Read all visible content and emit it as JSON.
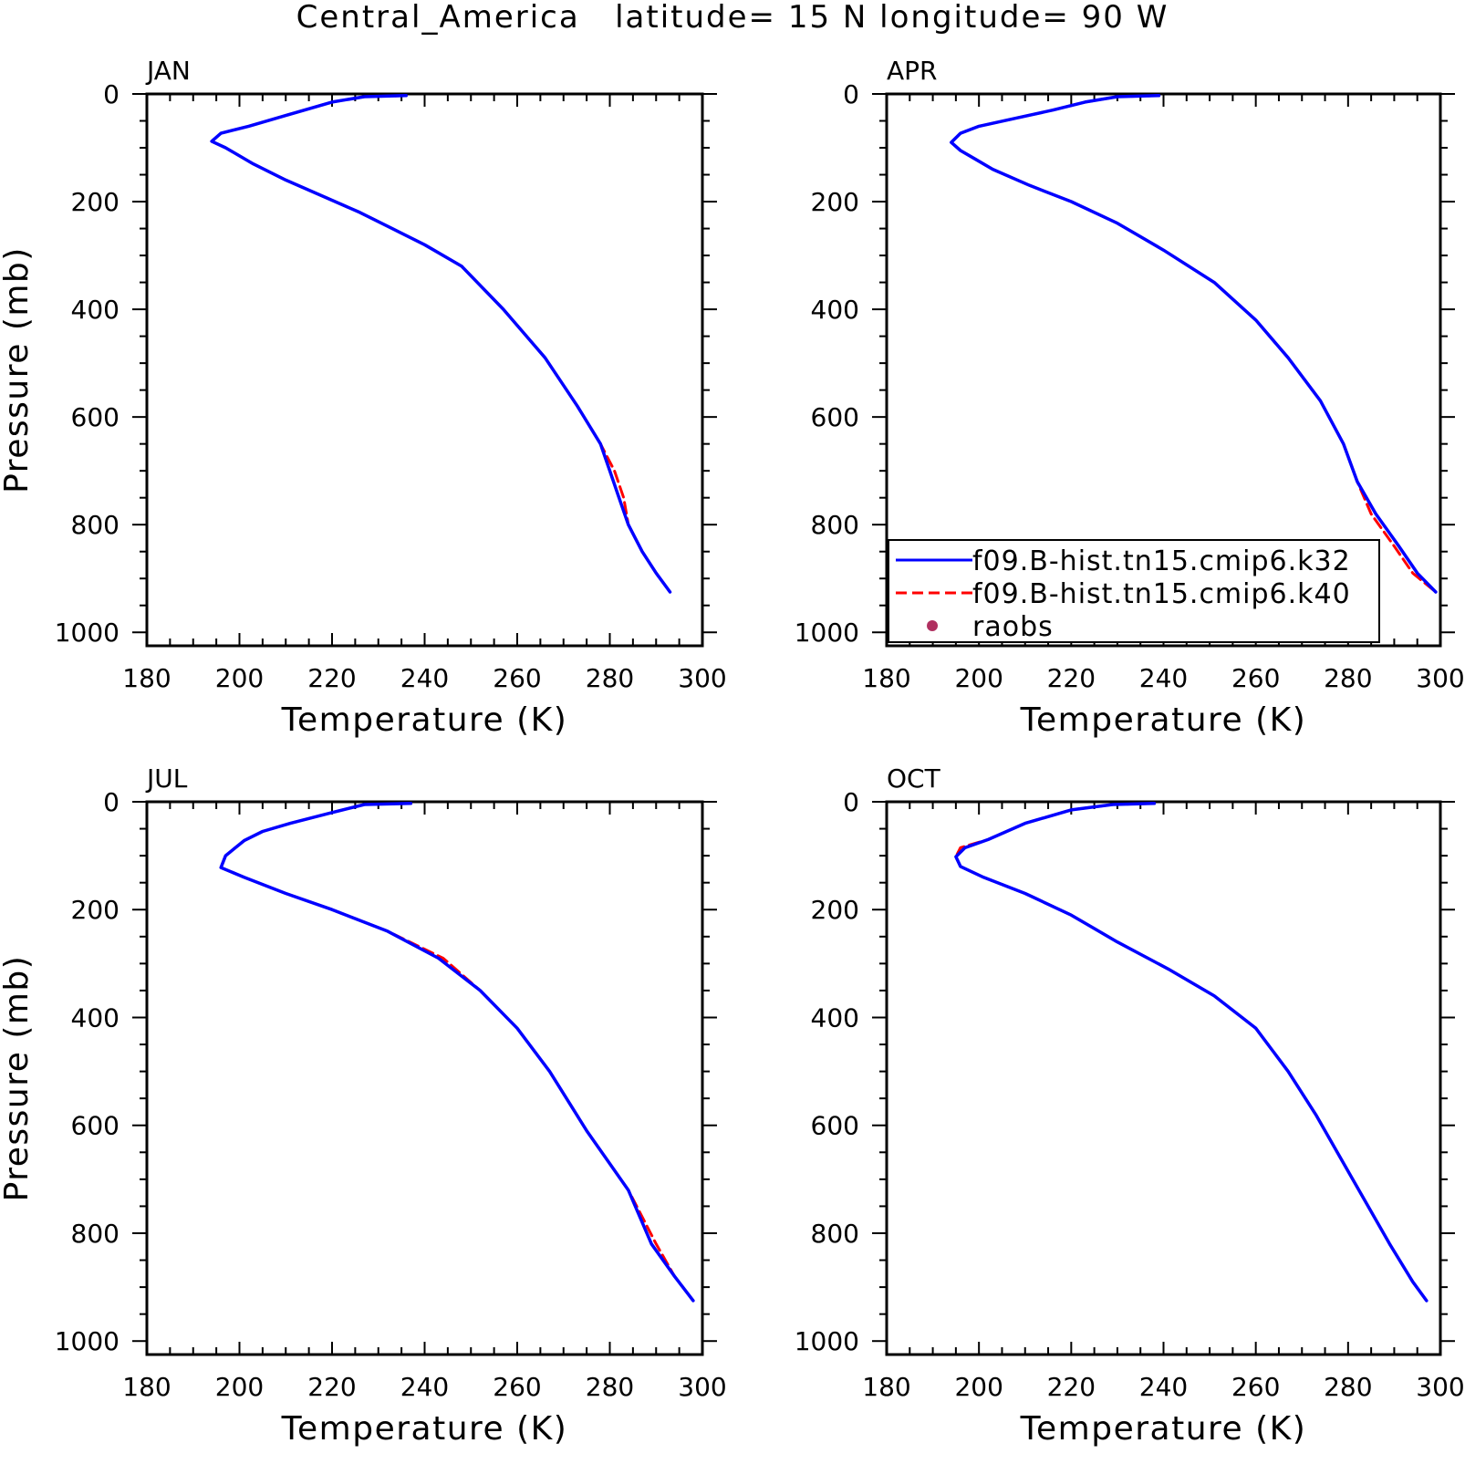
{
  "figure": {
    "title": "Central_America   latitude= 15 N longitude= 90 W"
  },
  "chart_data": [
    {
      "type": "line",
      "panel_label": "JAN",
      "xlabel": "Temperature (K)",
      "ylabel": "Pressure (mb)",
      "xlim": [
        180,
        300
      ],
      "ylim": [
        1025,
        0
      ],
      "y_inverted": true,
      "xticks": [
        180,
        200,
        220,
        240,
        260,
        280,
        300
      ],
      "yticks": [
        0,
        200,
        400,
        600,
        800,
        1000
      ],
      "series": [
        {
          "name": "f09.B-hist.tn15.cmip6.k32",
          "color": "#0000ff",
          "style": "solid",
          "x": [
            236,
            227,
            220,
            210,
            202,
            196,
            194,
            197,
            203,
            210,
            218,
            226,
            233,
            240,
            248,
            257,
            266,
            273,
            278,
            280,
            282,
            284,
            287,
            290,
            293
          ],
          "y": [
            3,
            5,
            15,
            40,
            60,
            73,
            88,
            100,
            130,
            160,
            190,
            220,
            250,
            280,
            320,
            400,
            490,
            580,
            650,
            700,
            750,
            800,
            850,
            890,
            925
          ]
        },
        {
          "name": "f09.B-hist.tn15.cmip6.k40",
          "color": "#ff0000",
          "style": "dashed",
          "x": [
            236,
            227,
            220,
            210,
            202,
            196,
            194,
            197,
            203,
            210,
            218,
            226,
            233,
            240,
            248,
            257,
            266,
            273,
            278,
            281,
            283,
            284,
            287,
            290,
            293
          ],
          "y": [
            3,
            5,
            15,
            40,
            60,
            73,
            88,
            100,
            130,
            160,
            190,
            220,
            250,
            280,
            320,
            400,
            490,
            580,
            650,
            700,
            750,
            800,
            850,
            890,
            925
          ]
        }
      ]
    },
    {
      "type": "line",
      "panel_label": "APR",
      "xlabel": "Temperature (K)",
      "ylabel": "",
      "xlim": [
        180,
        300
      ],
      "ylim": [
        1025,
        0
      ],
      "y_inverted": true,
      "xticks": [
        180,
        200,
        220,
        240,
        260,
        280,
        300
      ],
      "yticks": [
        0,
        200,
        400,
        600,
        800,
        1000
      ],
      "legend": {
        "placement": "lower-left",
        "entries": [
          {
            "label": "f09.B-hist.tn15.cmip6.k32",
            "color": "#0000ff",
            "style": "solid"
          },
          {
            "label": "f09.B-hist.tn15.cmip6.k40",
            "color": "#ff0000",
            "style": "dashed"
          },
          {
            "label": "raobs",
            "color": "#b03060",
            "style": "dot"
          }
        ]
      },
      "series": [
        {
          "name": "f09.B-hist.tn15.cmip6.k32",
          "color": "#0000ff",
          "style": "solid",
          "x": [
            239,
            230,
            223,
            216,
            208,
            200,
            196,
            194,
            196,
            199,
            203,
            211,
            220,
            230,
            240,
            251,
            260,
            267,
            274,
            279,
            282,
            286,
            291,
            295,
            299
          ],
          "y": [
            3,
            5,
            15,
            30,
            45,
            60,
            73,
            90,
            105,
            120,
            140,
            170,
            200,
            240,
            290,
            350,
            420,
            490,
            570,
            650,
            720,
            780,
            840,
            890,
            925
          ]
        },
        {
          "name": "f09.B-hist.tn15.cmip6.k40",
          "color": "#ff0000",
          "style": "dashed",
          "x": [
            239,
            230,
            223,
            216,
            208,
            200,
            196,
            194,
            196,
            199,
            203,
            211,
            220,
            230,
            240,
            251,
            260,
            267,
            274,
            279,
            282,
            285,
            290,
            294,
            299
          ],
          "y": [
            3,
            5,
            15,
            30,
            45,
            60,
            73,
            90,
            105,
            120,
            140,
            170,
            200,
            240,
            290,
            350,
            420,
            490,
            570,
            650,
            720,
            780,
            840,
            890,
            925
          ]
        }
      ]
    },
    {
      "type": "line",
      "panel_label": "JUL",
      "xlabel": "Temperature (K)",
      "ylabel": "Pressure (mb)",
      "xlim": [
        180,
        300
      ],
      "ylim": [
        1025,
        0
      ],
      "y_inverted": true,
      "xticks": [
        180,
        200,
        220,
        240,
        260,
        280,
        300
      ],
      "yticks": [
        0,
        200,
        400,
        600,
        800,
        1000
      ],
      "series": [
        {
          "name": "f09.B-hist.tn15.cmip6.k32",
          "color": "#0000ff",
          "style": "solid",
          "x": [
            237,
            227,
            220,
            211,
            205,
            201,
            197,
            196,
            201,
            210,
            220,
            232,
            243,
            252,
            260,
            267,
            275,
            284,
            289,
            294,
            298
          ],
          "y": [
            3,
            5,
            20,
            40,
            55,
            72,
            100,
            122,
            140,
            170,
            200,
            240,
            290,
            350,
            420,
            500,
            610,
            720,
            820,
            880,
            925
          ]
        },
        {
          "name": "f09.B-hist.tn15.cmip6.k40",
          "color": "#ff0000",
          "style": "dashed",
          "x": [
            237,
            227,
            220,
            211,
            205,
            201,
            197,
            196,
            201,
            210,
            220,
            232,
            244,
            252,
            260,
            267,
            275,
            284,
            290,
            294,
            298
          ],
          "y": [
            3,
            5,
            20,
            40,
            55,
            72,
            100,
            122,
            140,
            170,
            200,
            240,
            290,
            350,
            420,
            500,
            610,
            720,
            820,
            880,
            925
          ]
        }
      ]
    },
    {
      "type": "line",
      "panel_label": "OCT",
      "xlabel": "Temperature (K)",
      "ylabel": "",
      "xlim": [
        180,
        300
      ],
      "ylim": [
        1025,
        0
      ],
      "y_inverted": true,
      "xticks": [
        180,
        200,
        220,
        240,
        260,
        280,
        300
      ],
      "yticks": [
        0,
        200,
        400,
        600,
        800,
        1000
      ],
      "series": [
        {
          "name": "f09.B-hist.tn15.cmip6.k32",
          "color": "#0000ff",
          "style": "solid",
          "x": [
            238,
            229,
            220,
            210,
            202,
            197,
            195,
            196,
            201,
            210,
            220,
            230,
            241,
            251,
            260,
            267,
            273,
            281,
            289,
            294,
            297
          ],
          "y": [
            3,
            5,
            15,
            40,
            70,
            85,
            102,
            120,
            140,
            170,
            210,
            260,
            310,
            360,
            420,
            500,
            580,
            700,
            820,
            890,
            925
          ]
        },
        {
          "name": "f09.B-hist.tn15.cmip6.k40",
          "color": "#ff0000",
          "style": "dashed",
          "x": [
            238,
            229,
            220,
            210,
            202,
            196,
            195,
            196,
            201,
            210,
            220,
            230,
            241,
            251,
            260,
            267,
            273,
            281,
            289,
            294,
            297
          ],
          "y": [
            3,
            5,
            15,
            40,
            70,
            85,
            102,
            120,
            140,
            170,
            210,
            260,
            310,
            360,
            420,
            500,
            580,
            700,
            820,
            890,
            925
          ]
        }
      ]
    }
  ]
}
